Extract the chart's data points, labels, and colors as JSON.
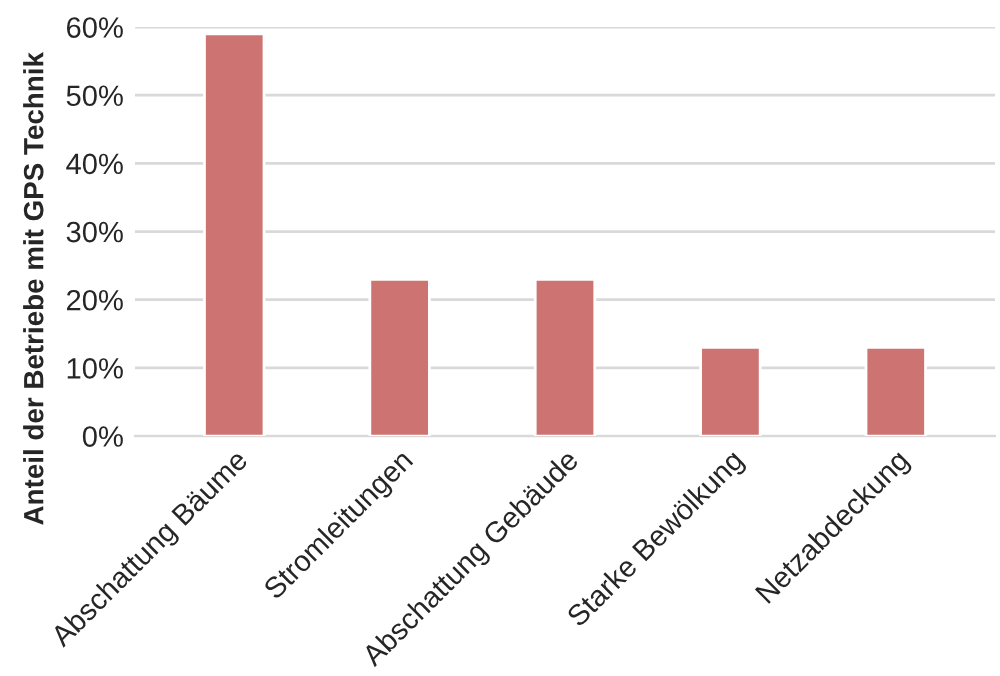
{
  "chart_data": {
    "type": "bar",
    "ylabel": "Anteil der Betriebe mit GPS Technik",
    "categories": [
      "Abschattung Bäume",
      "Stromleitungen",
      "Abschattung Gebäude",
      "Starke Bewölkung",
      "Netzabdeckung"
    ],
    "values": [
      59,
      23,
      23,
      13,
      13
    ],
    "color": "#cd7372",
    "ylim": [
      0,
      60
    ],
    "yticks": [
      {
        "value": 0,
        "label": "0%"
      },
      {
        "value": 10,
        "label": "10%"
      },
      {
        "value": 20,
        "label": "20%"
      },
      {
        "value": 30,
        "label": "30%"
      },
      {
        "value": 40,
        "label": "40%"
      },
      {
        "value": 50,
        "label": "50%"
      },
      {
        "value": 60,
        "label": "60%"
      }
    ],
    "grid": "y"
  }
}
